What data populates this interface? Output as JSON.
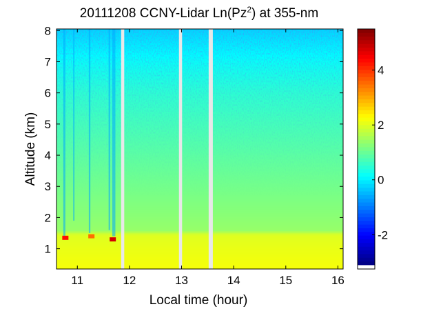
{
  "chart_data": {
    "type": "heatmap",
    "title_parts": {
      "prefix": "20111208 CCNY-Lidar Ln(Pz",
      "superscript": "2",
      "suffix": ") at 355-nm"
    },
    "xlabel": "Local time (hour)",
    "ylabel": "Altitude (km)",
    "xlim": [
      10.6,
      16.1
    ],
    "ylim": [
      0.35,
      8.05
    ],
    "xticks": [
      "11",
      "12",
      "13",
      "14",
      "15",
      "16"
    ],
    "yticks": [
      "1",
      "2",
      "3",
      "4",
      "5",
      "6",
      "7",
      "8"
    ],
    "colorbar": {
      "clim": [
        -3.1,
        5.5
      ],
      "ticks": [
        "-2",
        "0",
        "2",
        "4"
      ],
      "colormap": "jet"
    },
    "data_gaps_hours": [
      [
        11.84,
        11.9
      ],
      [
        12.95,
        13.01
      ],
      [
        13.52,
        13.6
      ]
    ],
    "boundary_layer_top_km": 1.45,
    "cloud_events": [
      {
        "time_hour": 10.75,
        "altitude_km": 1.35,
        "value": 4.3
      },
      {
        "time_hour": 11.25,
        "altitude_km": 1.4,
        "value": 3.5
      },
      {
        "time_hour": 11.66,
        "altitude_km": 1.3,
        "value": 4.8
      }
    ],
    "signal_profile": {
      "altitudes_km": [
        0.35,
        1.0,
        1.45,
        1.6,
        2,
        3,
        4,
        5,
        6,
        7,
        8
      ],
      "values": [
        2.2,
        2.1,
        2.0,
        1.4,
        1.3,
        1.1,
        0.9,
        0.7,
        0.5,
        0.2,
        -0.2
      ]
    }
  }
}
